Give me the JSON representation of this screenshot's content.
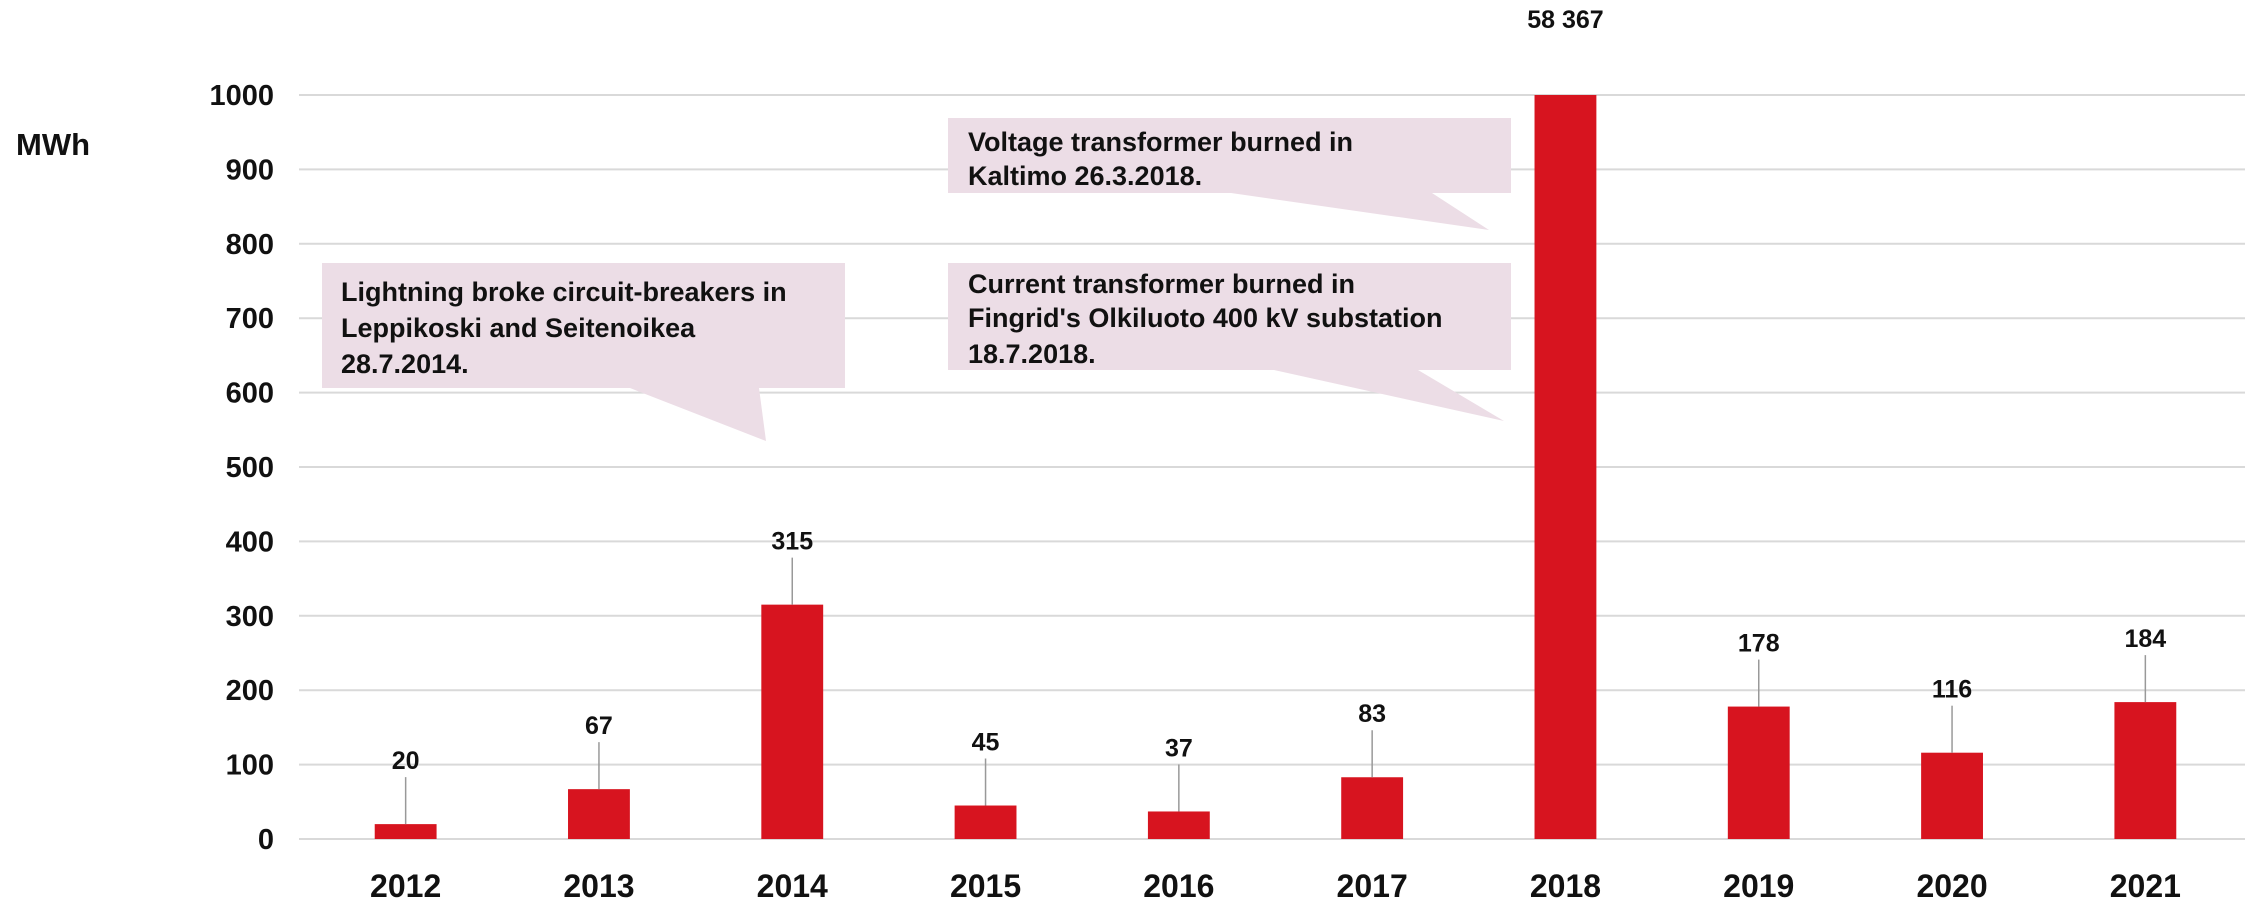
{
  "chart_data": {
    "type": "bar",
    "ylabel": "MWh",
    "categories": [
      "2012",
      "2013",
      "2014",
      "2015",
      "2016",
      "2017",
      "2018",
      "2019",
      "2020",
      "2021"
    ],
    "values": [
      20,
      67,
      315,
      45,
      37,
      83,
      58367,
      178,
      116,
      184
    ],
    "value_labels": [
      "20",
      "67",
      "315",
      "45",
      "37",
      "83",
      "58 367",
      "178",
      "116",
      "184"
    ],
    "color": "#d7141f",
    "ylim": [
      0,
      1000
    ],
    "yticks": [
      0,
      100,
      200,
      300,
      400,
      500,
      600,
      700,
      800,
      900,
      1000
    ],
    "grid": true,
    "annotations": [
      {
        "lines": [
          "Lightning broke circuit-breakers in",
          "Leppikoski and Seitenoikea",
          "28.7.2014."
        ]
      },
      {
        "lines": [
          "Voltage transformer burned in",
          "Kaltimo 26.3.2018."
        ]
      },
      {
        "lines": [
          "Current transformer burned in",
          "Fingrid's Olkiluoto 400 kV substation",
          "18.7.2018."
        ]
      }
    ]
  }
}
